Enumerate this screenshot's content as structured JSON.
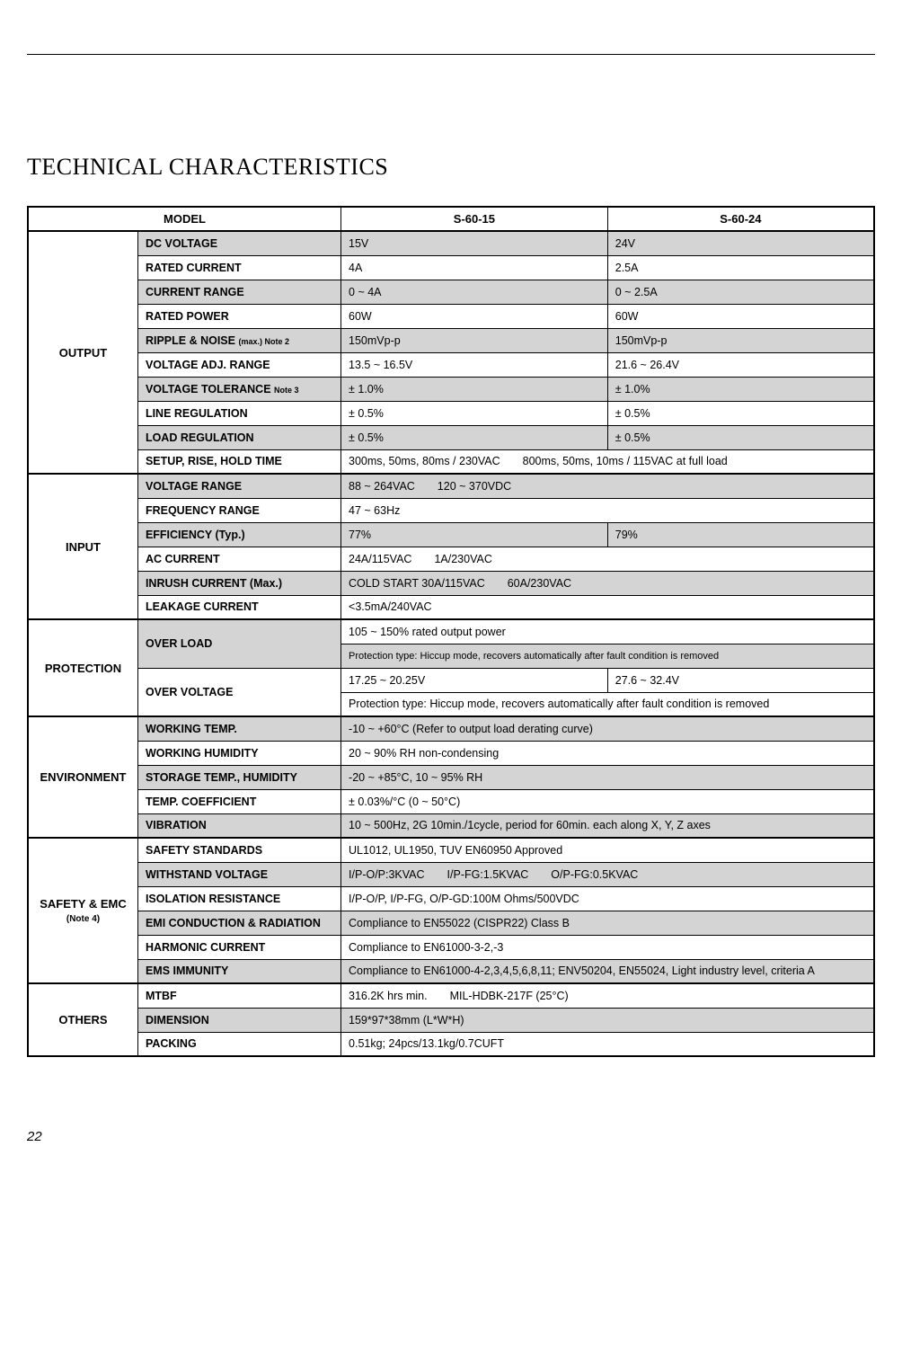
{
  "title": "TECHNICAL CHARACTERISTICS",
  "page_number": "22",
  "header": {
    "model": "MODEL",
    "col1": "S-60-15",
    "col2": "S-60-24"
  },
  "sections": {
    "output": {
      "label": "OUTPUT",
      "rows": [
        {
          "param": "DC VOLTAGE",
          "v1": "15V",
          "v2": "24V",
          "shaded": true
        },
        {
          "param": "RATED CURRENT",
          "v1": "4A",
          "v2": "2.5A",
          "shaded": false
        },
        {
          "param": "CURRENT RANGE",
          "v1": "0 ~ 4A",
          "v2": "0 ~ 2.5A",
          "shaded": true
        },
        {
          "param": "RATED POWER",
          "v1": "60W",
          "v2": "60W",
          "shaded": false
        },
        {
          "param_html": "RIPPLE & NOISE <span class='sub-note'>(max.) Note 2</span>",
          "v1": "150mVp-p",
          "v2": "150mVp-p",
          "shaded": true
        },
        {
          "param": "VOLTAGE ADJ. RANGE",
          "v1": "13.5 ~ 16.5V",
          "v2": "21.6 ~ 26.4V",
          "shaded": false
        },
        {
          "param_html": "VOLTAGE TOLERANCE <span class='sub-note'>Note 3</span>",
          "v1": "± 1.0%",
          "v2": "± 1.0%",
          "shaded": true
        },
        {
          "param": "LINE REGULATION",
          "v1": "± 0.5%",
          "v2": "± 0.5%",
          "shaded": false
        },
        {
          "param": "LOAD REGULATION",
          "v1": "± 0.5%",
          "v2": "± 0.5%",
          "shaded": true
        },
        {
          "param": "SETUP, RISE, HOLD TIME",
          "merged": "300ms, 50ms, 80ms / 230VAC  800ms, 50ms, 10ms / 115VAC at full load",
          "shaded": false
        }
      ]
    },
    "input": {
      "label": "INPUT",
      "rows": [
        {
          "param": "VOLTAGE RANGE",
          "merged": "88 ~ 264VAC  120 ~ 370VDC",
          "shaded": true
        },
        {
          "param": "FREQUENCY RANGE",
          "merged": "47 ~ 63Hz",
          "shaded": false
        },
        {
          "param": "EFFICIENCY (Typ.)",
          "v1": "77%",
          "v2": "79%",
          "shaded": true
        },
        {
          "param": "AC CURRENT",
          "merged": "24A/115VAC  1A/230VAC",
          "shaded": false
        },
        {
          "param": "INRUSH CURRENT (Max.)",
          "merged": "COLD START 30A/115VAC  60A/230VAC",
          "shaded": true
        },
        {
          "param": "LEAKAGE CURRENT",
          "merged": "<3.5mA/240VAC",
          "shaded": false
        }
      ]
    },
    "protection": {
      "label": "PROTECTION",
      "overload_param": "OVER LOAD",
      "overload_v": "105 ~ 150% rated output power",
      "overload_note": "Protection type: Hiccup mode, recovers automatically after fault condition is removed",
      "overvoltage_param": "OVER VOLTAGE",
      "overvoltage_v1": "17.25 ~ 20.25V",
      "overvoltage_v2": "27.6 ~ 32.4V",
      "overvoltage_note": "Protection type: Hiccup mode, recovers automatically after fault condition is removed"
    },
    "environment": {
      "label": "ENVIRONMENT",
      "rows": [
        {
          "param": "WORKING TEMP.",
          "merged": "-10 ~ +60°C (Refer to output load derating curve)",
          "shaded": true
        },
        {
          "param": "WORKING HUMIDITY",
          "merged": "20 ~ 90% RH non-condensing",
          "shaded": false
        },
        {
          "param": "STORAGE TEMP., HUMIDITY",
          "merged": "-20 ~ +85°C, 10 ~ 95% RH",
          "shaded": true
        },
        {
          "param": "TEMP. COEFFICIENT",
          "merged": "± 0.03%/°C (0 ~ 50°C)",
          "shaded": false
        },
        {
          "param": "VIBRATION",
          "merged": "10 ~ 500Hz, 2G 10min./1cycle, period for 60min. each along X, Y, Z axes",
          "shaded": true
        }
      ]
    },
    "safety": {
      "label_html": "SAFETY & EMC<br><span style='font-size:10px;font-weight:bold'>(Note 4)</span>",
      "rows": [
        {
          "param": "SAFETY STANDARDS",
          "merged": "UL1012, UL1950, TUV EN60950 Approved",
          "shaded": false
        },
        {
          "param": "WITHSTAND VOLTAGE",
          "merged": "I/P-O/P:3KVAC  I/P-FG:1.5KVAC  O/P-FG:0.5KVAC",
          "shaded": true
        },
        {
          "param": "ISOLATION RESISTANCE",
          "merged": "I/P-O/P, I/P-FG, O/P-GD:100M Ohms/500VDC",
          "shaded": false
        },
        {
          "param": "EMI CONDUCTION & RADIATION",
          "merged": "Compliance to EN55022 (CISPR22) Class B",
          "shaded": true
        },
        {
          "param": "HARMONIC CURRENT",
          "merged": "Compliance to EN61000-3-2,-3",
          "shaded": false
        },
        {
          "param": "EMS IMMUNITY",
          "merged": "Compliance to EN61000-4-2,3,4,5,6,8,11; ENV50204, EN55024, Light industry level, criteria A",
          "shaded": true
        }
      ]
    },
    "others": {
      "label": "OTHERS",
      "rows": [
        {
          "param": "MTBF",
          "merged": "316.2K hrs min.  MIL-HDBK-217F (25°C)",
          "shaded": false
        },
        {
          "param": "DIMENSION",
          "merged": "159*97*38mm (L*W*H)",
          "shaded": true
        },
        {
          "param": "PACKING",
          "merged": "0.51kg; 24pcs/13.1kg/0.7CUFT",
          "shaded": false
        }
      ]
    }
  },
  "colwidths": {
    "c1": "13%",
    "c2": "24%",
    "c3": "31.5%",
    "c4": "31.5%"
  }
}
